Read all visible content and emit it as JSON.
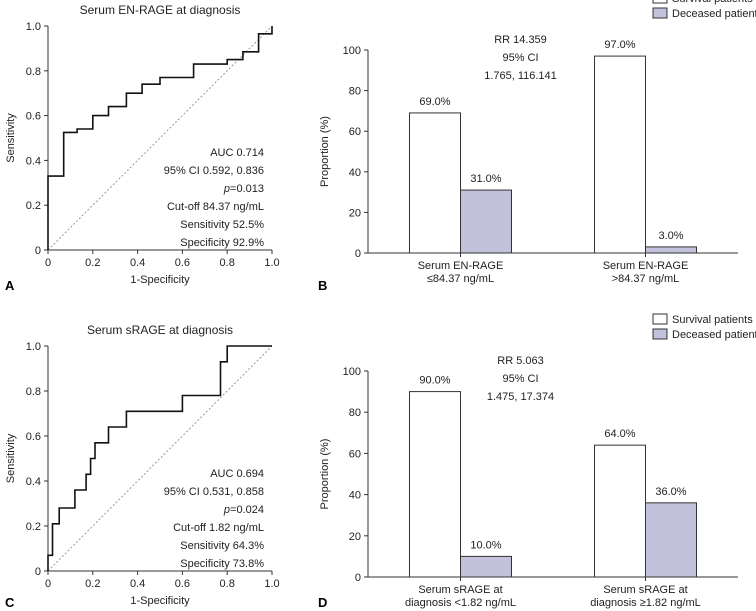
{
  "chart_data": [
    {
      "id": "A",
      "type": "line",
      "panel_label": "A",
      "title": "Serum EN-RAGE at diagnosis",
      "xlabel": "1-Specificity",
      "ylabel": "Sensitivity",
      "xlim": [
        0,
        1
      ],
      "ylim": [
        0,
        1
      ],
      "x_ticks": [
        "0",
        "0.2",
        "0.4",
        "0.6",
        "0.8",
        "1.0"
      ],
      "y_ticks": [
        "0",
        "0.2",
        "0.4",
        "0.6",
        "0.8",
        "1.0"
      ],
      "roc": [
        [
          0,
          0
        ],
        [
          0,
          0.33
        ],
        [
          0.07,
          0.33
        ],
        [
          0.07,
          0.525
        ],
        [
          0.13,
          0.525
        ],
        [
          0.13,
          0.54
        ],
        [
          0.2,
          0.54
        ],
        [
          0.2,
          0.6
        ],
        [
          0.27,
          0.6
        ],
        [
          0.27,
          0.64
        ],
        [
          0.35,
          0.64
        ],
        [
          0.35,
          0.7
        ],
        [
          0.42,
          0.7
        ],
        [
          0.42,
          0.74
        ],
        [
          0.5,
          0.74
        ],
        [
          0.5,
          0.77
        ],
        [
          0.65,
          0.77
        ],
        [
          0.65,
          0.83
        ],
        [
          0.8,
          0.83
        ],
        [
          0.8,
          0.85
        ],
        [
          0.87,
          0.85
        ],
        [
          0.87,
          0.885
        ],
        [
          0.94,
          0.885
        ],
        [
          0.94,
          0.965
        ],
        [
          1.0,
          0.965
        ],
        [
          1.0,
          1.0
        ]
      ],
      "stats": [
        "AUC 0.714",
        "95% CI 0.592, 0.836",
        "p=0.013",
        "Cut-off 84.37 ng/mL",
        "Sensitivity 52.5%",
        "Specificity 92.9%"
      ],
      "p_letter": "p",
      "p_rest": "=0.013"
    },
    {
      "id": "B",
      "type": "bar",
      "panel_label": "B",
      "ylabel": "Proportion (%)",
      "ylim": [
        0,
        100
      ],
      "y_ticks": [
        "0",
        "20",
        "40",
        "60",
        "80",
        "100"
      ],
      "groups": [
        [
          "Serum EN-RAGE",
          "≤84.37 ng/mL"
        ],
        [
          "Serum EN-RAGE",
          ">84.37 ng/mL"
        ]
      ],
      "series": [
        {
          "name": "Survival patients",
          "values": [
            69.0,
            97.0
          ],
          "labels": [
            "69.0%",
            "97.0%"
          ],
          "color": "#ffffff"
        },
        {
          "name": "Deceased patients",
          "values": [
            31.0,
            3.0
          ],
          "labels": [
            "31.0%",
            "3.0%"
          ],
          "color": "#c3c2dc"
        }
      ],
      "annotation": [
        "RR 14.359",
        "95% CI",
        "1.765, 116.141"
      ]
    },
    {
      "id": "C",
      "type": "line",
      "panel_label": "C",
      "title": "Serum sRAGE at diagnosis",
      "xlabel": "1-Specificity",
      "ylabel": "Sensitivity",
      "xlim": [
        0,
        1
      ],
      "ylim": [
        0,
        1
      ],
      "x_ticks": [
        "0",
        "0.2",
        "0.4",
        "0.6",
        "0.8",
        "1.0"
      ],
      "y_ticks": [
        "0",
        "0.2",
        "0.4",
        "0.6",
        "0.8",
        "1.0"
      ],
      "roc": [
        [
          0,
          0
        ],
        [
          0,
          0.07
        ],
        [
          0.02,
          0.07
        ],
        [
          0.02,
          0.21
        ],
        [
          0.05,
          0.21
        ],
        [
          0.05,
          0.28
        ],
        [
          0.12,
          0.28
        ],
        [
          0.12,
          0.36
        ],
        [
          0.17,
          0.36
        ],
        [
          0.17,
          0.43
        ],
        [
          0.19,
          0.43
        ],
        [
          0.19,
          0.5
        ],
        [
          0.21,
          0.5
        ],
        [
          0.21,
          0.57
        ],
        [
          0.27,
          0.57
        ],
        [
          0.27,
          0.64
        ],
        [
          0.35,
          0.64
        ],
        [
          0.35,
          0.71
        ],
        [
          0.6,
          0.71
        ],
        [
          0.6,
          0.78
        ],
        [
          0.77,
          0.78
        ],
        [
          0.77,
          0.93
        ],
        [
          0.8,
          0.93
        ],
        [
          0.8,
          1.0
        ],
        [
          1.0,
          1.0
        ]
      ],
      "stats": [
        "AUC 0.694",
        "95% CI 0.531, 0.858",
        "p=0.024",
        "Cut-off 1.82 ng/mL",
        "Sensitivity 64.3%",
        "Specificity 73.8%"
      ],
      "p_letter": "p",
      "p_rest": "=0.024"
    },
    {
      "id": "D",
      "type": "bar",
      "panel_label": "D",
      "ylabel": "Proportion (%)",
      "ylim": [
        0,
        100
      ],
      "y_ticks": [
        "0",
        "20",
        "40",
        "60",
        "80",
        "100"
      ],
      "groups": [
        [
          "Serum sRAGE at",
          "diagnosis <1.82 ng/mL"
        ],
        [
          "Serum sRAGE at",
          "diagnosis ≥1.82 ng/mL"
        ]
      ],
      "series": [
        {
          "name": "Survival patients",
          "values": [
            90.0,
            64.0
          ],
          "labels": [
            "90.0%",
            "64.0%"
          ],
          "color": "#ffffff"
        },
        {
          "name": "Deceased patients",
          "values": [
            10.0,
            36.0
          ],
          "labels": [
            "10.0%",
            "36.0%"
          ],
          "color": "#c3c2dc"
        }
      ],
      "annotation": [
        "RR 5.063",
        "95% CI",
        "1.475, 17.374"
      ]
    }
  ]
}
